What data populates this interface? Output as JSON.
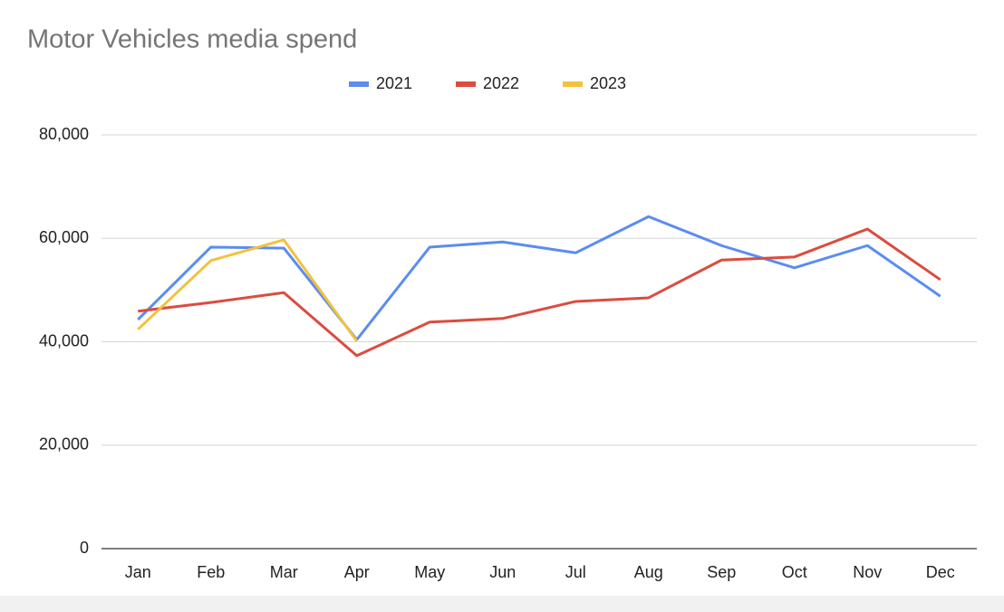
{
  "chart_data": {
    "type": "line",
    "title": "Motor Vehicles media spend",
    "categories": [
      "Jan",
      "Feb",
      "Mar",
      "Apr",
      "May",
      "Jun",
      "Jul",
      "Aug",
      "Sep",
      "Oct",
      "Nov",
      "Dec"
    ],
    "series": [
      {
        "name": "2021",
        "color": "#5b8def",
        "values": [
          44300,
          58300,
          58100,
          40400,
          58300,
          59300,
          57200,
          64200,
          58600,
          54300,
          58600,
          48800
        ]
      },
      {
        "name": "2022",
        "color": "#db4c3f",
        "values": [
          45900,
          47600,
          49500,
          37300,
          43800,
          44500,
          47800,
          48500,
          55800,
          56400,
          61800,
          52000
        ]
      },
      {
        "name": "2023",
        "color": "#f4c13e",
        "values": [
          42400,
          55700,
          59700,
          40100,
          null,
          null,
          null,
          null,
          null,
          null,
          null,
          null
        ]
      }
    ],
    "ylim": [
      0,
      80000
    ],
    "yticks": [
      0,
      {
        "value": 20000,
        "label": "20,000"
      },
      {
        "value": 40000,
        "label": "40,000"
      },
      {
        "value": 60000,
        "label": "60,000"
      },
      {
        "value": 80000,
        "label": "80,000"
      }
    ],
    "grid": true,
    "legend": "top"
  }
}
